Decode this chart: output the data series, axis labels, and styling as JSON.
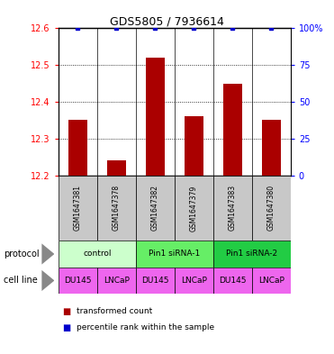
{
  "title": "GDS5805 / 7936614",
  "samples": [
    "GSM1647381",
    "GSM1647378",
    "GSM1647382",
    "GSM1647379",
    "GSM1647383",
    "GSM1647380"
  ],
  "red_values": [
    12.35,
    12.24,
    12.52,
    12.36,
    12.45,
    12.35
  ],
  "blue_values": [
    100,
    100,
    100,
    100,
    100,
    100
  ],
  "ylim_left": [
    12.2,
    12.6
  ],
  "ylim_right": [
    0,
    100
  ],
  "yticks_left": [
    12.2,
    12.3,
    12.4,
    12.5,
    12.6
  ],
  "yticks_right": [
    0,
    25,
    50,
    75,
    100
  ],
  "ytick_right_labels": [
    "0",
    "25",
    "50",
    "75",
    "100%"
  ],
  "protocols": [
    {
      "label": "control",
      "span": [
        0,
        2
      ],
      "color": "#ccffcc"
    },
    {
      "label": "Pin1 siRNA-1",
      "span": [
        2,
        4
      ],
      "color": "#66ee66"
    },
    {
      "label": "Pin1 siRNA-2",
      "span": [
        4,
        6
      ],
      "color": "#22cc44"
    }
  ],
  "cell_line_labels": [
    "DU145",
    "LNCaP",
    "DU145",
    "LNCaP",
    "DU145",
    "LNCaP"
  ],
  "cell_line_color": "#ee66ee",
  "bar_color": "#aa0000",
  "dot_color": "#0000cc",
  "bar_width": 0.5,
  "background_color": "#ffffff",
  "plot_bg_color": "#ffffff",
  "sample_bg_color": "#c8c8c8",
  "dotted_yticks": [
    12.3,
    12.4,
    12.5
  ],
  "arrow_color": "#888888"
}
